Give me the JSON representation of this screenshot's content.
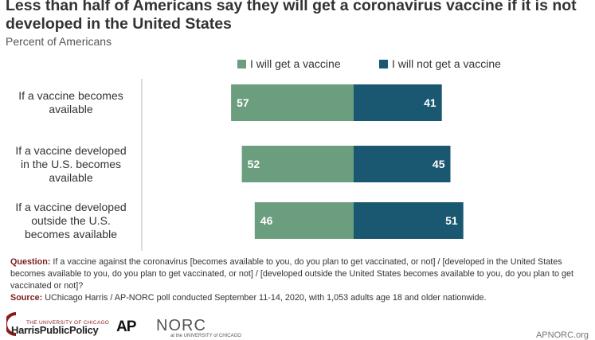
{
  "title": "Less than half of Americans say they will get a coronavirus vaccine if it is not developed in the United States",
  "subtitle": "Percent of Americans",
  "colors": {
    "will": "#6b9e7e",
    "will_not": "#1a5770",
    "axis": "#bbbbbb"
  },
  "chart_data": {
    "type": "bar",
    "orientation": "horizontal-diverging",
    "categories": [
      "If a vaccine becomes available",
      "If a vaccine developed in the U.S. becomes available",
      "If a vaccine developed outside the U.S. becomes available"
    ],
    "category_lines": [
      [
        "If a vaccine becomes",
        "available"
      ],
      [
        "If a vaccine developed",
        "in the U.S. becomes",
        "available"
      ],
      [
        "If a vaccine developed",
        "outside the U.S.",
        "becomes available"
      ]
    ],
    "series": [
      {
        "name": "I will get a vaccine",
        "values": [
          57,
          52,
          46
        ]
      },
      {
        "name": "I will not get a vaccine",
        "values": [
          41,
          45,
          51
        ]
      }
    ],
    "legend": "top"
  },
  "footer": {
    "question_label": "Question:",
    "question_text": " If a vaccine against the coronavirus [becomes available to you, do you plan to get vaccinated, or not] / [developed in the United States becomes available to you, do you plan to get vaccinated, or not] / [developed outside the United States becomes available to you, do you plan to get vaccinated or not]?",
    "source_label": "Source:",
    "source_text": " UChicago Harris / AP-NORC poll conducted September 11-14, 2020, with 1,053 adults age 18 and older nationwide."
  },
  "logos": {
    "uchicago_line1": "THE UNIVERSITY OF CHICAGO",
    "uchicago_line2": "HarrisPublicPolicy",
    "ap": "AP",
    "norc": "NORC",
    "norc_sub": "at the UNIVERSITY of CHICAGO",
    "site": "APNORC.org"
  }
}
